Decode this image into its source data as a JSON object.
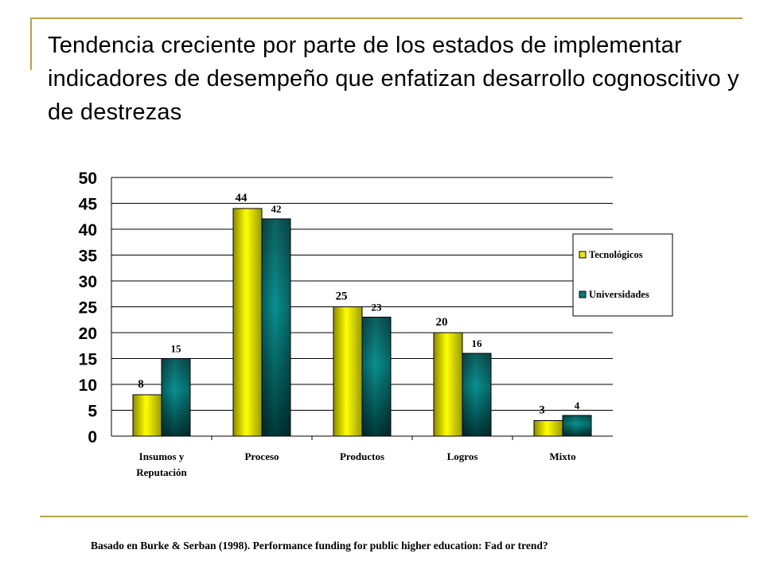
{
  "slide": {
    "title": "Tendencia creciente por parte de los estados de implementar indicadores de desempeño que enfatizan desarrollo cognoscitivo y  de destrezas",
    "source": "Basado en  Burke & Serban (1998). Performance funding for public higher education: Fad or trend?"
  },
  "colors": {
    "frame": "#b8a24a",
    "tecnologicos": "#e8e800",
    "universidades": "#0b8a8a"
  },
  "chart_data": {
    "type": "bar",
    "categories": [
      "Insumos y Reputación",
      "Proceso",
      "Productos",
      "Logros",
      "Mixto"
    ],
    "category_lines": [
      [
        "Insumos y",
        "Reputación"
      ],
      [
        "Proceso"
      ],
      [
        "Productos"
      ],
      [
        "Logros"
      ],
      [
        "Mixto"
      ]
    ],
    "series": [
      {
        "name": "Tecnológicos",
        "values": [
          8,
          44,
          25,
          20,
          3
        ]
      },
      {
        "name": "Universidades",
        "values": [
          15,
          42,
          23,
          16,
          4
        ]
      }
    ],
    "ylim": [
      0,
      50
    ],
    "yticks": [
      0,
      5,
      10,
      15,
      20,
      25,
      30,
      35,
      40,
      45,
      50
    ],
    "grid": true,
    "legend": "right"
  }
}
